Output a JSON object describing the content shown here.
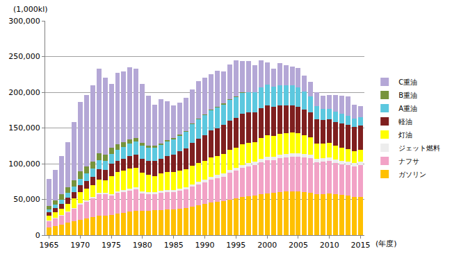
{
  "chart_data": {
    "type": "bar",
    "stacked": true,
    "y_label": "(1,000kl)",
    "x_label": "(年度)",
    "x": [
      1965,
      1966,
      1967,
      1968,
      1969,
      1970,
      1971,
      1972,
      1973,
      1974,
      1975,
      1976,
      1977,
      1978,
      1979,
      1980,
      1981,
      1982,
      1983,
      1984,
      1985,
      1986,
      1987,
      1988,
      1989,
      1990,
      1991,
      1992,
      1993,
      1994,
      1995,
      1996,
      1997,
      1998,
      1999,
      2000,
      2001,
      2002,
      2003,
      2004,
      2005,
      2006,
      2007,
      2008,
      2009,
      2010,
      2011,
      2012,
      2013,
      2014,
      2015
    ],
    "xlim": [
      1964.4,
      2015.6
    ],
    "xticks": [
      1965,
      1970,
      1975,
      1980,
      1985,
      1990,
      1995,
      2000,
      2005,
      2010,
      2015
    ],
    "ylim": [
      0,
      300000
    ],
    "yticks": [
      0,
      {
        "value": 50000,
        "label": "50,000"
      },
      {
        "value": 100000,
        "label": "100,000"
      },
      {
        "value": 150000,
        "label": "150,000"
      },
      {
        "value": 200000,
        "label": "200,000"
      },
      {
        "value": 250000,
        "label": "250,000"
      },
      {
        "value": 300000,
        "label": "300,000"
      }
    ],
    "grid": true,
    "legend": "right",
    "series": [
      {
        "name": "ガソリン",
        "color": "#FFC000",
        "values": [
          11000,
          13000,
          15000,
          17000,
          19000,
          21000,
          23000,
          25000,
          27000,
          27000,
          28000,
          30000,
          31000,
          33000,
          34000,
          34000,
          34000,
          35000,
          35000,
          36000,
          36000,
          37000,
          38000,
          40000,
          42000,
          44000,
          46000,
          47000,
          48000,
          50000,
          51000,
          53000,
          54000,
          55000,
          57000,
          58000,
          59000,
          60000,
          61000,
          61000,
          61000,
          60000,
          59000,
          57000,
          57000,
          58000,
          57000,
          56000,
          55000,
          53000,
          53000
        ]
      },
      {
        "name": "ナフサ",
        "color": "#F2A2C6",
        "values": [
          8000,
          10000,
          12000,
          15000,
          18000,
          22000,
          24000,
          26000,
          30000,
          30000,
          27000,
          29000,
          29000,
          29000,
          30000,
          24000,
          23000,
          22000,
          24000,
          24000,
          24000,
          25000,
          26000,
          28000,
          29000,
          30000,
          32000,
          33000,
          34000,
          37000,
          39000,
          41000,
          42000,
          43000,
          45000,
          47000,
          46000,
          48000,
          48000,
          49000,
          49000,
          49000,
          49000,
          45000,
          46000,
          46000,
          44000,
          43000,
          43000,
          43000,
          45000
        ]
      },
      {
        "name": "ジェット燃料",
        "color": "#EDEDED",
        "values": [
          1000,
          1000,
          1000,
          1000,
          1000,
          2000,
          2000,
          2000,
          2000,
          2000,
          2000,
          2000,
          3000,
          3000,
          3000,
          3000,
          3000,
          3000,
          3000,
          3000,
          3000,
          3000,
          3000,
          3000,
          4000,
          4000,
          4000,
          4000,
          4000,
          4000,
          4000,
          4000,
          5000,
          5000,
          5000,
          5000,
          5000,
          5000,
          5000,
          5000,
          5000,
          5000,
          5000,
          5000,
          5000,
          5000,
          5000,
          5000,
          5000,
          5000,
          5000
        ]
      },
      {
        "name": "灯油",
        "color": "#FFFF00",
        "values": [
          7000,
          8000,
          9000,
          11000,
          13000,
          15000,
          16000,
          17000,
          19000,
          18000,
          26000,
          27000,
          27000,
          28000,
          27000,
          26000,
          24000,
          23000,
          24000,
          25000,
          25000,
          25000,
          25000,
          26000,
          26000,
          26000,
          27000,
          27000,
          28000,
          28000,
          28000,
          29000,
          28000,
          27000,
          29000,
          30000,
          29000,
          29000,
          29000,
          29000,
          28000,
          26000,
          24000,
          21000,
          20000,
          20000,
          19000,
          18000,
          17000,
          16000,
          16000
        ]
      },
      {
        "name": "軽油",
        "color": "#7F1F1F",
        "values": [
          5000,
          6000,
          7000,
          8000,
          9000,
          10000,
          11000,
          12000,
          14000,
          14000,
          17000,
          16000,
          17000,
          18000,
          19000,
          20000,
          20000,
          21000,
          21000,
          23000,
          25000,
          27000,
          29000,
          32000,
          34000,
          36000,
          38000,
          39000,
          40000,
          41000,
          42000,
          43000,
          43000,
          42000,
          42000,
          42000,
          41000,
          40000,
          39000,
          38000,
          37000,
          36000,
          35000,
          34000,
          33000,
          33000,
          33000,
          34000,
          34000,
          34000,
          34000
        ]
      },
      {
        "name": "A重油",
        "color": "#5CC8DF",
        "values": [
          4000,
          5000,
          6000,
          7000,
          8000,
          9000,
          10000,
          11000,
          13000,
          13000,
          14000,
          15000,
          16000,
          17000,
          18000,
          18000,
          18000,
          18000,
          19000,
          20000,
          21000,
          22000,
          24000,
          26000,
          27000,
          28000,
          28000,
          29000,
          29000,
          29000,
          29000,
          29000,
          28000,
          28000,
          29000,
          29000,
          28000,
          28000,
          28000,
          28000,
          27000,
          25000,
          22000,
          19000,
          16000,
          15000,
          15000,
          14000,
          13000,
          12000,
          12000
        ]
      },
      {
        "name": "B重油",
        "color": "#77933C",
        "values": [
          5000,
          6000,
          7000,
          8000,
          9000,
          10000,
          10000,
          10000,
          10000,
          9000,
          8000,
          8000,
          7000,
          6000,
          5000,
          4000,
          3000,
          3000,
          2000,
          2000,
          2000,
          2000,
          1000,
          1000,
          1000,
          1000,
          1000,
          1000,
          1000,
          1000,
          1000,
          1000,
          0,
          0,
          0,
          0,
          0,
          0,
          0,
          0,
          0,
          0,
          0,
          0,
          0,
          0,
          0,
          0,
          0,
          0,
          0
        ]
      },
      {
        "name": "C重油",
        "color": "#B4A7D6",
        "values": [
          38000,
          42000,
          54000,
          63000,
          81000,
          97000,
          100000,
          107000,
          118000,
          107000,
          90000,
          100000,
          99000,
          101000,
          97000,
          83000,
          70000,
          58000,
          62000,
          54000,
          46000,
          44000,
          46000,
          48000,
          53000,
          51000,
          49000,
          50000,
          45000,
          49000,
          51000,
          44000,
          44000,
          38000,
          38000,
          31000,
          25000,
          31000,
          28000,
          26000,
          27000,
          22000,
          21000,
          19000,
          18000,
          19000,
          23000,
          25000,
          27000,
          20000,
          16000
        ]
      }
    ]
  }
}
